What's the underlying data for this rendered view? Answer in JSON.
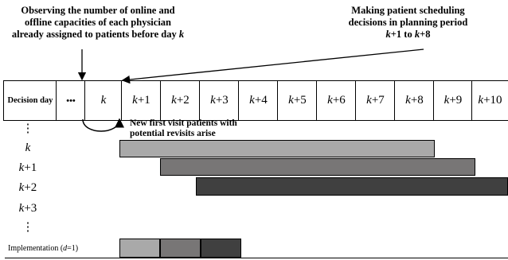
{
  "notes": {
    "left": [
      "Observing the number of online and",
      "offline capacities of each physician",
      "already assigned to patients before day "
    ],
    "left_k": "k",
    "right": [
      "Making patient scheduling",
      "decisions in planning period"
    ],
    "right_range": [
      "k",
      "+1 to ",
      "k",
      "+8"
    ],
    "arrival": [
      "New first visit patients with",
      "potential revisits arise"
    ]
  },
  "timeline": {
    "first_label": "Decision day",
    "ellipsis": "•••",
    "cells": [
      [
        "k",
        ""
      ],
      [
        "k",
        "+1"
      ],
      [
        "k",
        "+2"
      ],
      [
        "k",
        "+3"
      ],
      [
        "k",
        "+4"
      ],
      [
        "k",
        "+5"
      ],
      [
        "k",
        "+6"
      ],
      [
        "k",
        "+7"
      ],
      [
        "k",
        "+8"
      ],
      [
        "k",
        "+9"
      ],
      [
        "k",
        "+10"
      ]
    ]
  },
  "rows": [
    [
      "⋮",
      ""
    ],
    [
      "k",
      ""
    ],
    [
      "k",
      "+1"
    ],
    [
      "k",
      "+2"
    ],
    [
      "k",
      "+3"
    ],
    [
      "⋮",
      ""
    ]
  ],
  "implementation": [
    "Implementation (",
    "d",
    "=1)"
  ],
  "colors": {
    "bar1": "#a9a9a9",
    "bar2": "#787676",
    "bar3": "#404040"
  }
}
